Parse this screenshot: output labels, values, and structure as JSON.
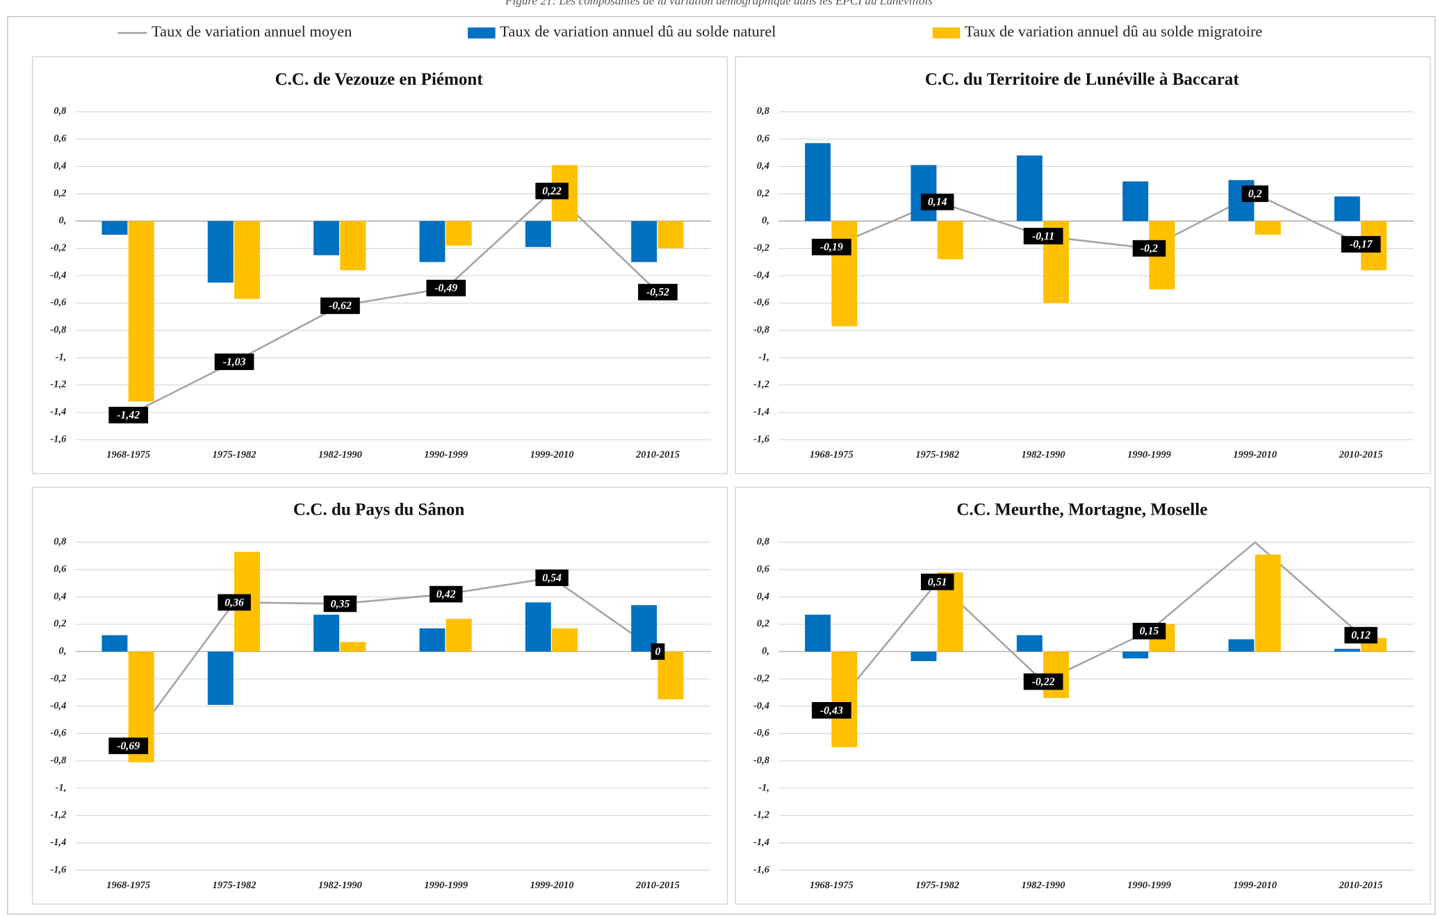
{
  "caption": "Figure 21: Les composantes de la variation démographique dans les EPCI du Lunévillois",
  "legend": [
    {
      "name": "Taux de variation annuel moyen",
      "color": "#a5a5a5"
    },
    {
      "name": "Taux de variation annuel dû au solde naturel",
      "color": "#0070c0"
    },
    {
      "name": "Taux de variation annuel dû au solde migratoire",
      "color": "#ffc000"
    }
  ],
  "chart_data": [
    {
      "type": "bar",
      "title": "C.C. de Vezouze en Piémont",
      "categories": [
        "1968-1975",
        "1975-1982",
        "1982-1990",
        "1990-1999",
        "1999-2010",
        "2010-2015"
      ],
      "series": [
        {
          "type": "line",
          "values": [
            -1.42,
            -1.03,
            -0.62,
            -0.49,
            0.22,
            -0.52
          ],
          "value_labels": [
            "-1,42",
            "-1,03",
            "-0,62",
            "-0,49",
            "0,22",
            "-0,52"
          ]
        },
        {
          "type": "bar",
          "values": [
            -0.1,
            -0.45,
            -0.25,
            -0.3,
            -0.19,
            -0.3
          ]
        },
        {
          "type": "bar",
          "values": [
            -1.32,
            -0.57,
            -0.36,
            -0.18,
            0.41,
            -0.2
          ]
        }
      ],
      "ylim": [
        -1.6,
        0.8
      ],
      "yticks": [
        {
          "value": 0.8,
          "label": "0,8"
        },
        {
          "value": 0.6,
          "label": "0,6"
        },
        {
          "value": 0.4,
          "label": "0,4"
        },
        {
          "value": 0.2,
          "label": "0,2"
        },
        {
          "value": 0,
          "label": "0,"
        },
        {
          "value": -0.2,
          "label": "-0,2"
        },
        {
          "value": -0.4,
          "label": "-0,4"
        },
        {
          "value": -0.6,
          "label": "-0,6"
        },
        {
          "value": -0.8,
          "label": "-0,8"
        },
        {
          "value": -1,
          "label": "-1,"
        },
        {
          "value": -1.2,
          "label": "-1,2"
        },
        {
          "value": -1.4,
          "label": "-1,4"
        },
        {
          "value": -1.6,
          "label": "-1,6"
        }
      ],
      "grid": true
    },
    {
      "type": "bar",
      "title": "C.C. du Territoire de Lunéville à Baccarat",
      "categories": [
        "1968-1975",
        "1975-1982",
        "1982-1990",
        "1990-1999",
        "1999-2010",
        "2010-2015"
      ],
      "series": [
        {
          "type": "line",
          "values": [
            -0.19,
            0.14,
            -0.11,
            -0.2,
            0.2,
            -0.17
          ],
          "value_labels": [
            "-0,19",
            "0,14",
            "-0,11",
            "-0,2",
            "0,2",
            "-0,17"
          ]
        },
        {
          "type": "bar",
          "values": [
            0.57,
            0.41,
            0.48,
            0.29,
            0.3,
            0.18
          ]
        },
        {
          "type": "bar",
          "values": [
            -0.77,
            -0.28,
            -0.6,
            -0.5,
            -0.1,
            -0.36
          ]
        }
      ],
      "ylim": [
        -1.6,
        0.8
      ],
      "yticks": [
        {
          "value": 0.8,
          "label": "0,8"
        },
        {
          "value": 0.6,
          "label": "0,6"
        },
        {
          "value": 0.4,
          "label": "0,4"
        },
        {
          "value": 0.2,
          "label": "0,2"
        },
        {
          "value": 0,
          "label": "0,"
        },
        {
          "value": -0.2,
          "label": "-0,2"
        },
        {
          "value": -0.4,
          "label": "-0,4"
        },
        {
          "value": -0.6,
          "label": "-0,6"
        },
        {
          "value": -0.8,
          "label": "-0,8"
        },
        {
          "value": -1,
          "label": "-1,"
        },
        {
          "value": -1.2,
          "label": "-1,2"
        },
        {
          "value": -1.4,
          "label": "-1,4"
        },
        {
          "value": -1.6,
          "label": "-1,6"
        }
      ],
      "grid": true
    },
    {
      "type": "bar",
      "title": "C.C. du Pays du Sânon",
      "categories": [
        "1968-1975",
        "1975-1982",
        "1982-1990",
        "1990-1999",
        "1999-2010",
        "2010-2015"
      ],
      "series": [
        {
          "type": "line",
          "values": [
            -0.69,
            0.36,
            0.35,
            0.42,
            0.54,
            0
          ],
          "value_labels": [
            "-0,69",
            "0,36",
            "0,35",
            "0,42",
            "0,54",
            "0"
          ]
        },
        {
          "type": "bar",
          "values": [
            0.12,
            -0.39,
            0.27,
            0.17,
            0.36,
            0.34
          ]
        },
        {
          "type": "bar",
          "values": [
            -0.81,
            0.73,
            0.07,
            0.24,
            0.17,
            -0.35
          ]
        }
      ],
      "ylim": [
        -1.6,
        0.8
      ],
      "yticks": [
        {
          "value": 0.8,
          "label": "0,8"
        },
        {
          "value": 0.6,
          "label": "0,6"
        },
        {
          "value": 0.4,
          "label": "0,4"
        },
        {
          "value": 0.2,
          "label": "0,2"
        },
        {
          "value": 0,
          "label": "0,"
        },
        {
          "value": -0.2,
          "label": "-0,2"
        },
        {
          "value": -0.4,
          "label": "-0,4"
        },
        {
          "value": -0.6,
          "label": "-0,6"
        },
        {
          "value": -0.8,
          "label": "-0,8"
        },
        {
          "value": -1,
          "label": "-1,"
        },
        {
          "value": -1.2,
          "label": "-1,2"
        },
        {
          "value": -1.4,
          "label": "-1,4"
        },
        {
          "value": -1.6,
          "label": "-1,6"
        }
      ],
      "grid": true
    },
    {
      "type": "bar",
      "title": "C.C. Meurthe, Mortagne, Moselle",
      "categories": [
        "1968-1975",
        "1975-1982",
        "1982-1990",
        "1990-1999",
        "1999-2010",
        "2010-2015"
      ],
      "series": [
        {
          "type": "line",
          "values": [
            -0.43,
            0.51,
            -0.22,
            0.15,
            0.8,
            0.12
          ],
          "value_labels": [
            "-0,43",
            "0,51",
            "-0,22",
            "0,15",
            null,
            "0,12"
          ]
        },
        {
          "type": "bar",
          "values": [
            0.27,
            -0.07,
            0.12,
            -0.05,
            0.09,
            0.02
          ]
        },
        {
          "type": "bar",
          "values": [
            -0.7,
            0.58,
            -0.34,
            0.2,
            0.71,
            0.1
          ]
        }
      ],
      "ylim": [
        -1.6,
        0.8
      ],
      "yticks": [
        {
          "value": 0.8,
          "label": "0,8"
        },
        {
          "value": 0.6,
          "label": "0,6"
        },
        {
          "value": 0.4,
          "label": "0,4"
        },
        {
          "value": 0.2,
          "label": "0,2"
        },
        {
          "value": 0,
          "label": "0,"
        },
        {
          "value": -0.2,
          "label": "-0,2"
        },
        {
          "value": -0.4,
          "label": "-0,4"
        },
        {
          "value": -0.6,
          "label": "-0,6"
        },
        {
          "value": -0.8,
          "label": "-0,8"
        },
        {
          "value": -1,
          "label": "-1,"
        },
        {
          "value": -1.2,
          "label": "-1,2"
        },
        {
          "value": -1.4,
          "label": "-1,4"
        },
        {
          "value": -1.6,
          "label": "-1,6"
        }
      ],
      "grid": true
    }
  ]
}
